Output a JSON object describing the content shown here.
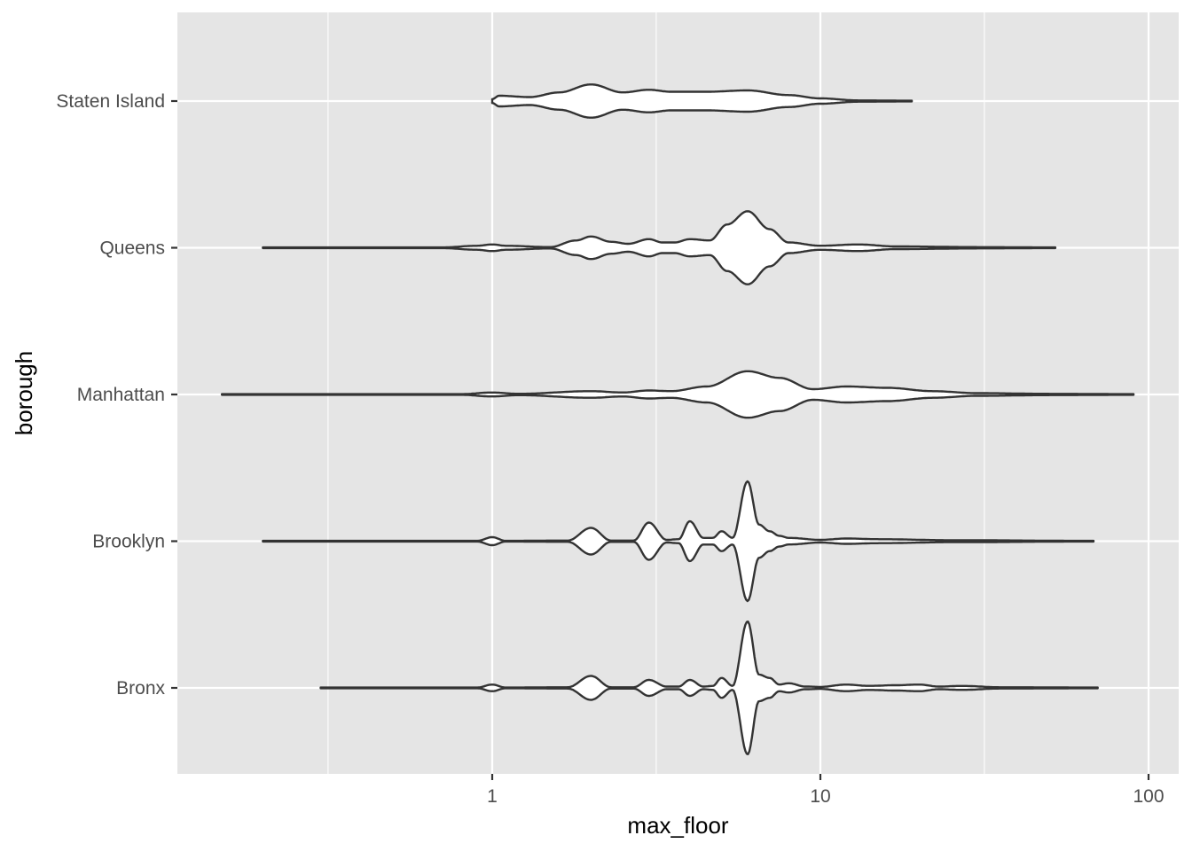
{
  "chart_data": {
    "type": "violin",
    "orientation": "horizontal",
    "xlabel": "max_floor",
    "ylabel": "borough",
    "x_scale": "log10",
    "xlim": [
      0.15,
      110
    ],
    "x_ticks": [
      {
        "value": 1,
        "label": "1"
      },
      {
        "value": 10,
        "label": "10"
      },
      {
        "value": 100,
        "label": "100"
      }
    ],
    "x_minor_ticks": [
      0.316,
      3.16,
      31.6
    ],
    "grid": true,
    "colors": {
      "panel": "#E5E5E5",
      "grid": "#FFFFFF",
      "violin_fill": "#FFFFFF",
      "violin_line": "#333333"
    },
    "categories": [
      "Staten Island",
      "Queens",
      "Manhattan",
      "Brooklyn",
      "Bronx"
    ],
    "series": [
      {
        "category": "Staten Island",
        "min": 1,
        "max": 19,
        "density": [
          [
            1,
            0.03
          ],
          [
            1.05,
            0.08
          ],
          [
            1.3,
            0.06
          ],
          [
            1.6,
            0.13
          ],
          [
            2,
            0.25
          ],
          [
            2.5,
            0.13
          ],
          [
            3,
            0.17
          ],
          [
            3.5,
            0.14
          ],
          [
            4.5,
            0.14
          ],
          [
            6,
            0.16
          ],
          [
            8,
            0.09
          ],
          [
            10,
            0.04
          ],
          [
            13,
            0.01
          ],
          [
            19,
            0.005
          ]
        ]
      },
      {
        "category": "Queens",
        "min": 0.2,
        "max": 52,
        "density": [
          [
            0.2,
            0.005
          ],
          [
            0.7,
            0.005
          ],
          [
            0.9,
            0.03
          ],
          [
            1,
            0.05
          ],
          [
            1.1,
            0.03
          ],
          [
            1.5,
            0.01
          ],
          [
            1.8,
            0.11
          ],
          [
            2,
            0.17
          ],
          [
            2.3,
            0.09
          ],
          [
            2.6,
            0.06
          ],
          [
            3,
            0.13
          ],
          [
            3.3,
            0.08
          ],
          [
            3.6,
            0.08
          ],
          [
            4,
            0.13
          ],
          [
            4.6,
            0.11
          ],
          [
            5.2,
            0.35
          ],
          [
            6,
            0.55
          ],
          [
            7,
            0.28
          ],
          [
            8,
            0.08
          ],
          [
            10,
            0.03
          ],
          [
            13,
            0.05
          ],
          [
            17,
            0.02
          ],
          [
            30,
            0.01
          ],
          [
            52,
            0.005
          ]
        ]
      },
      {
        "category": "Manhattan",
        "min": 0.15,
        "max": 90,
        "density": [
          [
            0.15,
            0.005
          ],
          [
            0.8,
            0.005
          ],
          [
            1,
            0.03
          ],
          [
            1.2,
            0.01
          ],
          [
            2,
            0.05
          ],
          [
            2.5,
            0.03
          ],
          [
            3,
            0.06
          ],
          [
            3.5,
            0.05
          ],
          [
            4.5,
            0.12
          ],
          [
            6,
            0.35
          ],
          [
            7.5,
            0.25
          ],
          [
            9.5,
            0.08
          ],
          [
            12,
            0.12
          ],
          [
            16,
            0.1
          ],
          [
            22,
            0.05
          ],
          [
            30,
            0.02
          ],
          [
            50,
            0.01
          ],
          [
            90,
            0.005
          ]
        ]
      },
      {
        "category": "Brooklyn",
        "min": 0.2,
        "max": 68,
        "density": [
          [
            0.2,
            0.005
          ],
          [
            0.9,
            0.005
          ],
          [
            1,
            0.06
          ],
          [
            1.1,
            0.005
          ],
          [
            1.7,
            0.01
          ],
          [
            2,
            0.2
          ],
          [
            2.3,
            0.01
          ],
          [
            2.7,
            0.01
          ],
          [
            3,
            0.28
          ],
          [
            3.4,
            0.02
          ],
          [
            3.7,
            0.03
          ],
          [
            4,
            0.3
          ],
          [
            4.4,
            0.05
          ],
          [
            4.7,
            0.05
          ],
          [
            5,
            0.15
          ],
          [
            5.4,
            0.05
          ],
          [
            6,
            0.9
          ],
          [
            6.5,
            0.25
          ],
          [
            7,
            0.15
          ],
          [
            7.5,
            0.08
          ],
          [
            8,
            0.05
          ],
          [
            10,
            0.02
          ],
          [
            12,
            0.04
          ],
          [
            15,
            0.03
          ],
          [
            25,
            0.015
          ],
          [
            68,
            0.005
          ]
        ]
      },
      {
        "category": "Bronx",
        "min": 0.3,
        "max": 70,
        "density": [
          [
            0.3,
            0.005
          ],
          [
            0.9,
            0.005
          ],
          [
            1,
            0.05
          ],
          [
            1.1,
            0.005
          ],
          [
            1.7,
            0.01
          ],
          [
            2,
            0.18
          ],
          [
            2.3,
            0.01
          ],
          [
            2.7,
            0.01
          ],
          [
            3,
            0.12
          ],
          [
            3.4,
            0.02
          ],
          [
            3.7,
            0.02
          ],
          [
            4,
            0.12
          ],
          [
            4.4,
            0.02
          ],
          [
            4.7,
            0.03
          ],
          [
            5,
            0.15
          ],
          [
            5.4,
            0.03
          ],
          [
            6,
            1.0
          ],
          [
            6.5,
            0.2
          ],
          [
            7,
            0.15
          ],
          [
            7.5,
            0.05
          ],
          [
            8,
            0.07
          ],
          [
            9,
            0.02
          ],
          [
            10,
            0.015
          ],
          [
            12,
            0.05
          ],
          [
            14,
            0.03
          ],
          [
            17,
            0.04
          ],
          [
            20,
            0.05
          ],
          [
            23,
            0.02
          ],
          [
            27,
            0.03
          ],
          [
            35,
            0.01
          ],
          [
            70,
            0.005
          ]
        ]
      }
    ]
  }
}
